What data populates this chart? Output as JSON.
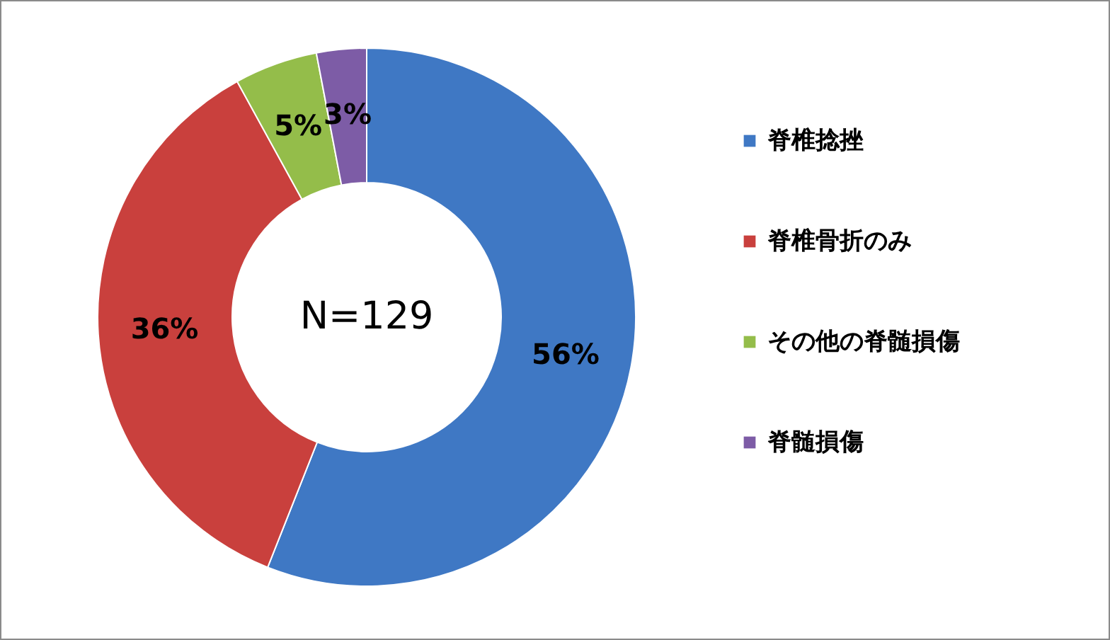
{
  "chart_data": {
    "type": "donut",
    "categories": [
      "脊椎捻挫",
      "脊椎骨折のみ",
      "その他の脊髄損傷",
      "脊髄損傷"
    ],
    "values": [
      56,
      36,
      5,
      3
    ],
    "value_labels": [
      "56%",
      "36%",
      "5%",
      "3%"
    ],
    "colors": [
      "#3f78c4",
      "#c9403d",
      "#94bd4a",
      "#7d5ca6"
    ],
    "annotations": [
      "N=129"
    ],
    "legend": "right"
  }
}
